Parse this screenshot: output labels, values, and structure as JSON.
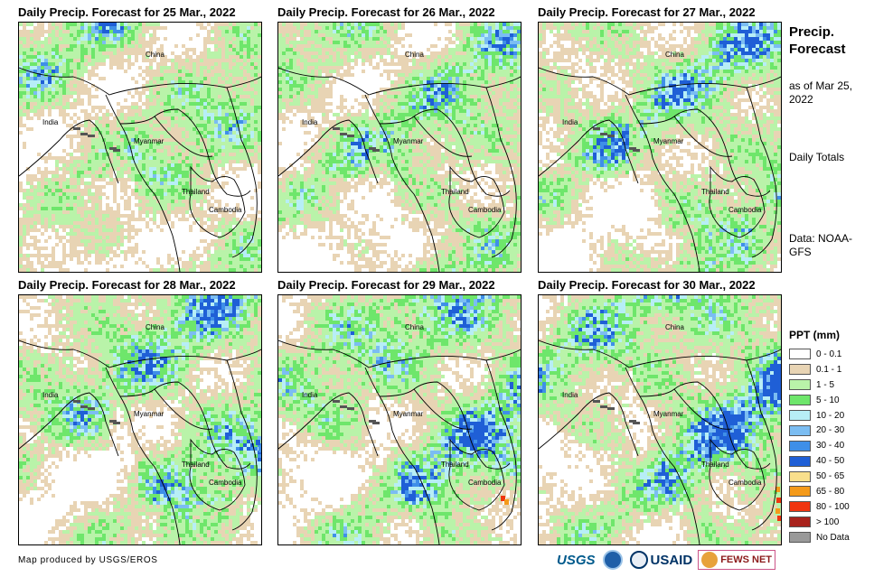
{
  "panels": [
    {
      "title": "Daily Precip. Forecast for 25 Mar., 2022",
      "day": 25
    },
    {
      "title": "Daily Precip. Forecast for 26 Mar., 2022",
      "day": 26
    },
    {
      "title": "Daily Precip. Forecast for 27 Mar., 2022",
      "day": 27
    },
    {
      "title": "Daily Precip. Forecast for 28 Mar., 2022",
      "day": 28
    },
    {
      "title": "Daily Precip. Forecast for 29 Mar., 2022",
      "day": 29
    },
    {
      "title": "Daily Precip. Forecast for 30 Mar., 2022",
      "day": 30
    }
  ],
  "map_labels": {
    "china": "China",
    "india": "India",
    "myanmar": "Myanmar",
    "thailand": "Thailand",
    "cambodia": "Cambodia"
  },
  "side": {
    "title": "Precip. Forecast",
    "asof": "as of Mar 25, 2022",
    "daily": "Daily Totals",
    "data": "Data: NOAA-GFS"
  },
  "legend": {
    "title": "PPT (mm)",
    "items": [
      {
        "label": "0 - 0.1",
        "color": "#ffffff"
      },
      {
        "label": "0.1 - 1",
        "color": "#e8d4b4"
      },
      {
        "label": "1 - 5",
        "color": "#b9f3a9"
      },
      {
        "label": "5 - 10",
        "color": "#6ee66b"
      },
      {
        "label": "10 - 20",
        "color": "#b7eef6"
      },
      {
        "label": "20 - 30",
        "color": "#7bbdf2"
      },
      {
        "label": "30 - 40",
        "color": "#3f8fe8"
      },
      {
        "label": "40 - 50",
        "color": "#1f5fd6"
      },
      {
        "label": "50 - 65",
        "color": "#f9df8c"
      },
      {
        "label": "65 - 80",
        "color": "#f49a1a"
      },
      {
        "label": "80 - 100",
        "color": "#f03510"
      },
      {
        "label": "> 100",
        "color": "#a8221c"
      },
      {
        "label": "No Data",
        "color": "#999999"
      }
    ]
  },
  "credit": "Map produced by USGS/EROS",
  "logos": {
    "usgs": "USGS",
    "usaid": "USAID",
    "fews": "FEWS NET"
  }
}
